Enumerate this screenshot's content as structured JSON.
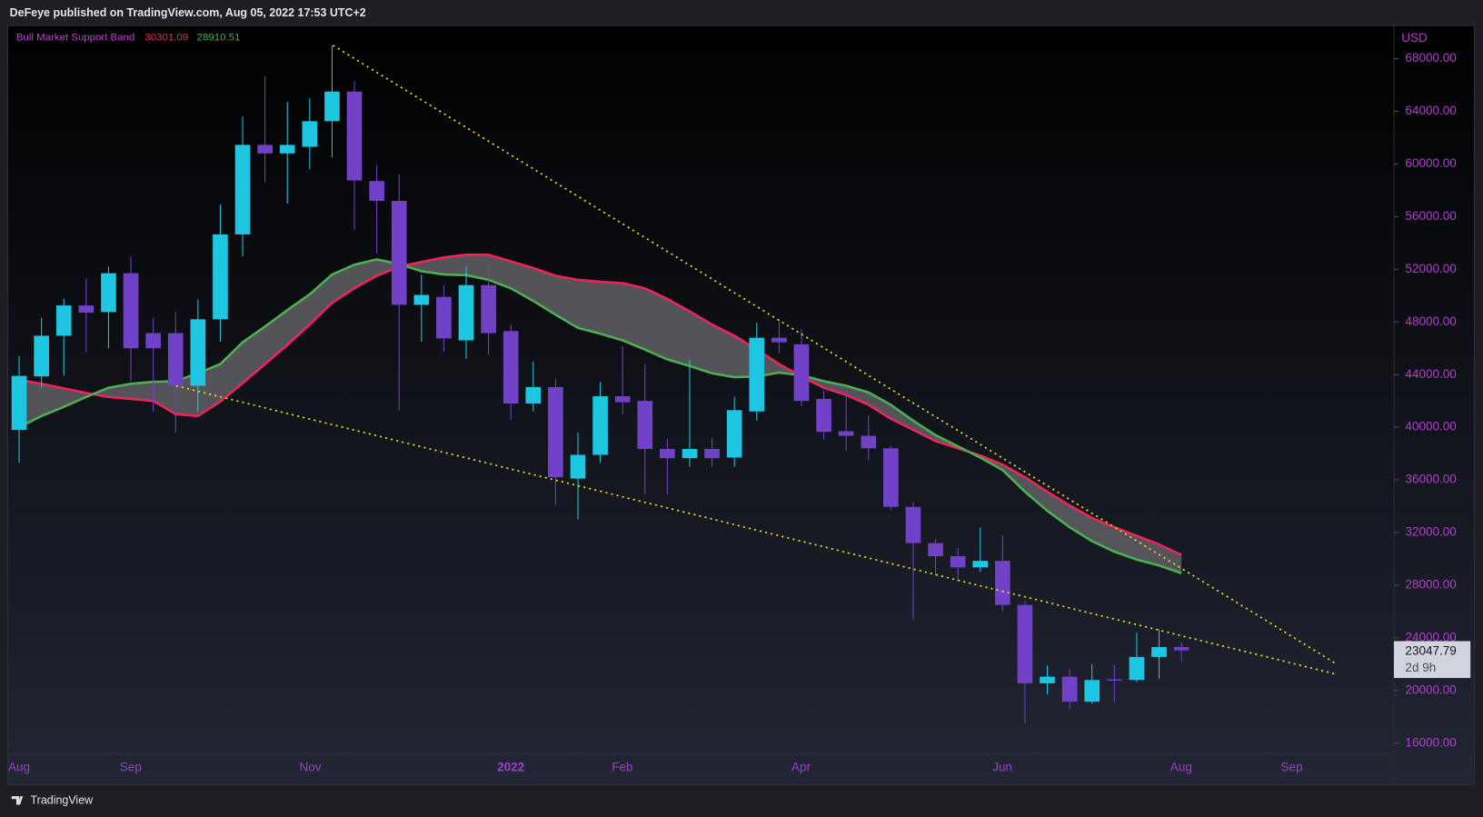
{
  "header": {
    "text": "DeFeye published on TradingView.com, Aug 05, 2022 17:53 UTC+2"
  },
  "footer": {
    "logo": "TradingView"
  },
  "chart_data": {
    "type": "candlestick",
    "indicator": "Bull Market Support Band",
    "currency": "USD",
    "countdown": "2d 9h",
    "up_color": "#1fc6e2",
    "down_color": "#7142c8",
    "open": [
      39800,
      43865,
      46950,
      49250,
      48750,
      51700,
      47150,
      47150,
      43150,
      48200,
      54650,
      61450,
      60800,
      61300,
      63250,
      65500,
      58700,
      57200,
      49300,
      49900,
      46600,
      50800,
      47300,
      41800,
      43050,
      36100,
      37900,
      42350,
      42000,
      38350,
      37650,
      38350,
      37700,
      41200,
      46800,
      46300,
      42150,
      39700,
      39350,
      38400,
      33950,
      31200,
      30200,
      29350,
      29850,
      26500,
      20550,
      21050,
      19150,
      20850,
      20800,
      22550,
      23300
    ],
    "high": [
      45400,
      48300,
      49750,
      51300,
      52200,
      53000,
      48300,
      48750,
      49700,
      56900,
      63600,
      66650,
      64700,
      65000,
      69000,
      66300,
      59900,
      59200,
      51600,
      50800,
      52200,
      52300,
      47800,
      45000,
      43700,
      39600,
      43450,
      46150,
      44800,
      39100,
      45100,
      39200,
      42300,
      47950,
      48200,
      47450,
      42800,
      42900,
      40900,
      38600,
      34300,
      31500,
      30800,
      32400,
      31800,
      26800,
      21900,
      21600,
      22000,
      21950,
      24400,
      24650,
      23650
    ],
    "low": [
      37300,
      43000,
      43900,
      45700,
      46000,
      43500,
      41200,
      39600,
      41200,
      46500,
      53000,
      58600,
      57000,
      59600,
      60500,
      55000,
      53200,
      41300,
      46500,
      45700,
      45200,
      45500,
      40550,
      41200,
      34100,
      33000,
      37300,
      41000,
      34900,
      34900,
      37000,
      37000,
      37000,
      40500,
      45600,
      41600,
      39100,
      38200,
      37500,
      33700,
      25400,
      28700,
      28300,
      29000,
      26000,
      17500,
      19700,
      18600,
      19000,
      19100,
      20650,
      20900,
      22250
    ],
    "close": [
      43900,
      46950,
      49250,
      48700,
      51700,
      46000,
      46000,
      43150,
      48200,
      54650,
      61450,
      60800,
      61450,
      63250,
      65500,
      58750,
      57200,
      49300,
      50050,
      46750,
      50800,
      47150,
      41800,
      43050,
      36200,
      37900,
      42350,
      41900,
      38350,
      37650,
      38350,
      37650,
      41300,
      46800,
      46450,
      42000,
      39650,
      39350,
      38400,
      33950,
      31200,
      30200,
      29350,
      29850,
      26500,
      20550,
      21050,
      19150,
      20800,
      20750,
      22550,
      23300,
      23047.79
    ],
    "series": [
      {
        "color": "#f0245c",
        "values": [
          43600,
          43300,
          42950,
          42600,
          42300,
          42150,
          42000,
          41000,
          40850,
          41950,
          43350,
          44800,
          46250,
          47800,
          49450,
          50550,
          51500,
          52200,
          52550,
          52900,
          53100,
          53100,
          52600,
          52100,
          51500,
          51200,
          51050,
          50950,
          50550,
          49750,
          48800,
          47800,
          46950,
          45900,
          44800,
          43850,
          43000,
          42450,
          41700,
          40650,
          39800,
          38950,
          38400,
          37850,
          37150,
          36200,
          35100,
          34050,
          33100,
          32400,
          31750,
          31100,
          30301.09
        ]
      },
      {
        "color": "#4caf50",
        "values": [
          40000,
          40850,
          41550,
          42300,
          43000,
          43300,
          43450,
          43500,
          44100,
          44800,
          46450,
          47650,
          48900,
          50100,
          51600,
          52350,
          52750,
          52400,
          51850,
          51600,
          51550,
          51200,
          50550,
          49600,
          48550,
          47550,
          47100,
          46600,
          45900,
          45150,
          44650,
          44100,
          43800,
          43850,
          44150,
          43950,
          43500,
          43150,
          42650,
          41700,
          40500,
          39400,
          38550,
          37700,
          36750,
          35100,
          33650,
          32400,
          31350,
          30550,
          29950,
          29500,
          28910.51
        ]
      }
    ],
    "band_fill": "#5b5b60",
    "time_labels": [
      "Aug",
      "Sep",
      "Nov",
      "2022",
      "Feb",
      "Apr",
      "Jun",
      "Aug",
      "Sep"
    ],
    "ylim": [
      12835,
      70515
    ],
    "yticks": [
      {
        "value": 16000,
        "label": "16000.00"
      },
      {
        "value": 20000,
        "label": "20000.00"
      },
      {
        "value": 24000,
        "label": "24000.00"
      },
      {
        "value": 28000,
        "label": "28000.00"
      },
      {
        "value": 32000,
        "label": "32000.00"
      },
      {
        "value": 36000,
        "label": "36000.00"
      },
      {
        "value": 40000,
        "label": "40000.00"
      },
      {
        "value": 44000,
        "label": "44000.00"
      },
      {
        "value": 48000,
        "label": "48000.00"
      },
      {
        "value": 52000,
        "label": "52000.00"
      },
      {
        "value": 56000,
        "label": "56000.00"
      },
      {
        "value": 60000,
        "label": "60000.00"
      },
      {
        "value": 64000,
        "label": "64000.00"
      },
      {
        "value": 68000,
        "label": "68000.00"
      }
    ]
  }
}
